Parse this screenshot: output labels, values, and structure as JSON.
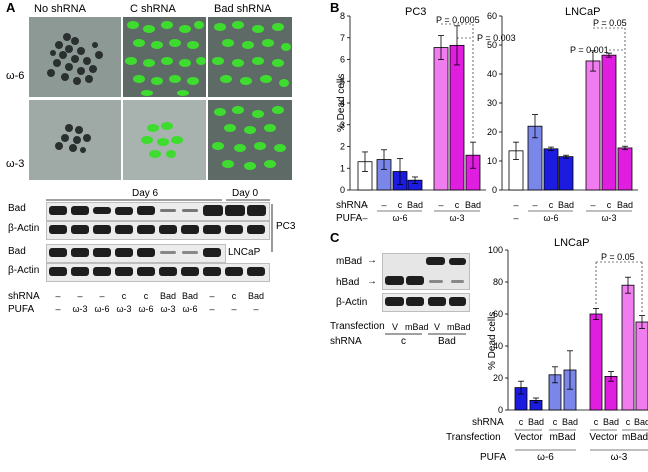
{
  "panels": {
    "a": {
      "label": "A",
      "col_titles": [
        "No shRNA",
        "C shRNA",
        "Bad shRNA"
      ],
      "row_titles": [
        "ω-6",
        "ω-3"
      ],
      "day_labels": [
        "Day 6",
        "Day 0"
      ],
      "blot_rows": [
        "Bad",
        "β-Actin",
        "Bad",
        "β-Actin"
      ],
      "cell_lines": [
        "PC3",
        "LNCaP"
      ],
      "shrna_label": "shRNA",
      "pufa_label": "PUFA",
      "shrna_values": [
        "–",
        "–",
        "–",
        "c",
        "c",
        "Bad",
        "Bad",
        "–",
        "c",
        "Bad"
      ],
      "pufa_values": [
        "–",
        "ω-3",
        "ω-6",
        "ω-3",
        "ω-6",
        "ω-3",
        "ω-6",
        "–",
        "–",
        "–"
      ]
    },
    "b": {
      "label": "B",
      "ylabel": "% Dead cells",
      "shrna_label": "shRNA",
      "pufa_label": "PUFA",
      "shrna_values": [
        "–",
        "–",
        "c",
        "Bad",
        "–",
        "c",
        "Bad"
      ],
      "pufa_groups": [
        "–",
        "ω-6",
        "ω-3"
      ],
      "pc3_p": [
        "P = 0.0005",
        "P = 0.003"
      ],
      "lncap_p": [
        "P = 0.05",
        "P = 0.001"
      ]
    },
    "c": {
      "label": "C",
      "blot_rows": [
        "mBad",
        "hBad",
        "β-Actin"
      ],
      "transfection_label": "Transfection",
      "shrna_label": "shRNA",
      "transfection_values": [
        "V",
        "mBad",
        "V",
        "mBad"
      ],
      "shrna_groups": [
        "c",
        "Bad"
      ],
      "ylabel": "% Dead cells",
      "chart_shrna": [
        "c",
        "Bad",
        "c",
        "Bad",
        "c",
        "Bad",
        "c",
        "Bad"
      ],
      "chart_transfection": [
        "Vector",
        "mBad",
        "Vector",
        "mBad"
      ],
      "chart_pufa": [
        "ω-6",
        "ω-3"
      ],
      "p_value": "P = 0.05",
      "pufa_label": "PUFA"
    }
  },
  "colors": {
    "white": "#ffffff",
    "lavender": "#7a86e8",
    "blue": "#1c1ce0",
    "pink": "#f07cf0",
    "magenta": "#e01ee0",
    "green": "#39d12d"
  },
  "chart_data": [
    {
      "type": "bar",
      "title": "PC3",
      "ylabel": "% Dead cells",
      "ylim": [
        0,
        8
      ],
      "categories": [
        "–/–",
        "–/ω-6",
        "c/ω-6",
        "Bad/ω-6",
        "–/ω-3",
        "c/ω-3",
        "Bad/ω-3"
      ],
      "values": [
        1.3,
        1.4,
        0.85,
        0.45,
        6.55,
        6.65,
        1.6
      ],
      "errors": [
        0.45,
        0.45,
        0.6,
        0.15,
        0.55,
        0.9,
        0.6
      ],
      "colors": [
        "#ffffff",
        "#7a86e8",
        "#1c1ce0",
        "#1c1ce0",
        "#f07cf0",
        "#e01ee0",
        "#e01ee0"
      ]
    },
    {
      "type": "bar",
      "title": "LNCaP",
      "ylabel": "% Dead cells",
      "ylim": [
        0,
        60
      ],
      "categories": [
        "–/–",
        "–/ω-6",
        "c/ω-6",
        "Bad/ω-6",
        "–/ω-3",
        "c/ω-3",
        "Bad/ω-3"
      ],
      "values": [
        13.5,
        22,
        14.2,
        11.5,
        44.5,
        46.5,
        14.5
      ],
      "errors": [
        3,
        4,
        0.6,
        0.5,
        3.5,
        0.7,
        0.6
      ],
      "colors": [
        "#ffffff",
        "#7a86e8",
        "#1c1ce0",
        "#1c1ce0",
        "#f07cf0",
        "#e01ee0",
        "#e01ee0"
      ]
    },
    {
      "type": "bar",
      "title": "LNCaP",
      "ylabel": "% Dead cells",
      "ylim": [
        0,
        100
      ],
      "categories": [
        "c/Vector/ω-6",
        "Bad/Vector/ω-6",
        "c/mBad/ω-6",
        "Bad/mBad/ω-6",
        "c/Vector/ω-3",
        "Bad/Vector/ω-3",
        "c/mBad/ω-3",
        "Bad/mBad/ω-3"
      ],
      "values": [
        14,
        6,
        22,
        25,
        60,
        21,
        78,
        55
      ],
      "errors": [
        4,
        1.5,
        5,
        12,
        3.5,
        3,
        5,
        4
      ],
      "colors": [
        "#1c1ce0",
        "#1c1ce0",
        "#7a86e8",
        "#7a86e8",
        "#e01ee0",
        "#e01ee0",
        "#f07cf0",
        "#f07cf0"
      ]
    }
  ]
}
